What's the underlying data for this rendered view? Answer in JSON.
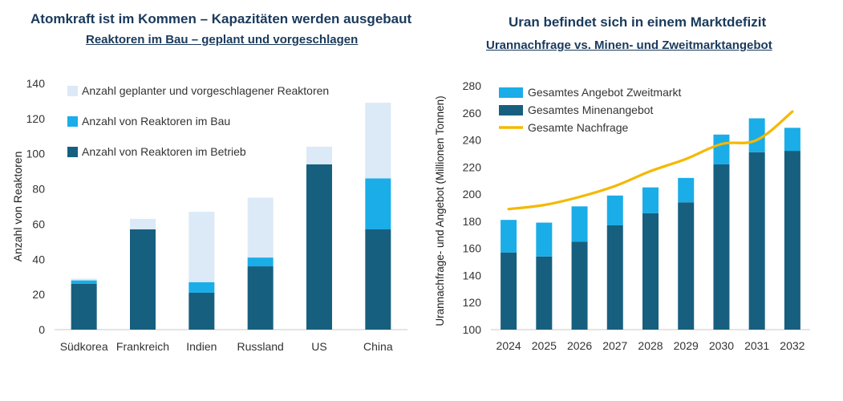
{
  "left": {
    "title": "Atomkraft ist im Kommen – Kapazitäten werden ausgebaut",
    "subtitle": "Reaktoren im Bau – geplant und vorgeschlagen",
    "chart_data": {
      "type": "bar",
      "stacked": true,
      "categories": [
        "Südkorea",
        "Frankreich",
        "Indien",
        "Russland",
        "US",
        "China"
      ],
      "series": [
        {
          "name": "Anzahl von Reaktoren im Betrieb",
          "color": "#175f7f",
          "values": [
            26,
            57,
            21,
            36,
            94,
            57
          ]
        },
        {
          "name": "Anzahl von Reaktoren im Bau",
          "color": "#1aade8",
          "values": [
            2,
            0,
            6,
            5,
            0,
            29
          ]
        },
        {
          "name": "Anzahl geplanter und vorgeschlagener Reaktoren",
          "color": "#dce9f6",
          "values": [
            1,
            6,
            40,
            34,
            10,
            43
          ]
        }
      ],
      "ylabel": "Anzahl von Reaktoren",
      "ylim": [
        0,
        140
      ],
      "yticks": [
        0,
        20,
        40,
        60,
        80,
        100,
        120,
        140
      ],
      "grid": false,
      "legend_position": "top-left",
      "legend_order": [
        2,
        1,
        0
      ]
    }
  },
  "right": {
    "title": "Uran befindet sich in einem Marktdefizit",
    "subtitle": "Urannachfrage  vs. Minen- und Zweitmarktangebot",
    "chart_data": {
      "type": "bar",
      "stacked": true,
      "categories": [
        "2024",
        "2025",
        "2026",
        "2027",
        "2028",
        "2029",
        "2030",
        "2031",
        "2032"
      ],
      "series": [
        {
          "name": "Gesamtes Minenangebot",
          "color": "#175f7f",
          "values": [
            157,
            154,
            165,
            177,
            186,
            194,
            222,
            231,
            232
          ]
        },
        {
          "name": "Gesamtes Angebot Zweitmarkt",
          "color": "#1aade8",
          "values": [
            24,
            25,
            26,
            22,
            19,
            18,
            22,
            25,
            17
          ]
        }
      ],
      "line": {
        "name": "Gesamte Nachfrage",
        "color": "#f5b800",
        "values": [
          189,
          192,
          198,
          206,
          217,
          226,
          237,
          240,
          261
        ]
      },
      "ylabel": "Urannachfrage- und Angebot (Millionen Tonnen)",
      "ylim": [
        100,
        280
      ],
      "yticks": [
        100,
        120,
        140,
        160,
        180,
        200,
        220,
        240,
        260,
        280
      ],
      "grid": false,
      "legend_position": "top-left",
      "legend_order": [
        "Gesamtes Angebot Zweitmarkt",
        "Gesamtes Minenangebot",
        "Gesamte Nachfrage"
      ]
    }
  }
}
